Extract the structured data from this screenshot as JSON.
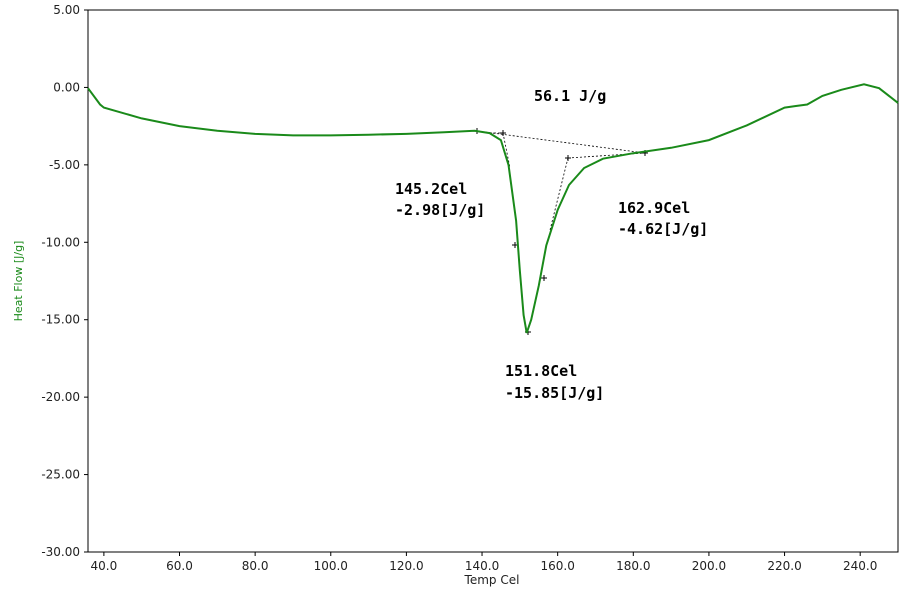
{
  "chart_data": {
    "type": "line",
    "x_label": "Temp Cel",
    "y_label": "Heat Flow [J/g]",
    "x": [
      35.8,
      39,
      40,
      50,
      60,
      70,
      80,
      90,
      100,
      110,
      120,
      130,
      138,
      142,
      145,
      147,
      149,
      150,
      151,
      151.8,
      153,
      155,
      157,
      160,
      163,
      167,
      172,
      180,
      190,
      200,
      210,
      220,
      223,
      226,
      230,
      235,
      241,
      245,
      250
    ],
    "series": [
      {
        "name": "Heat Flow",
        "color": "#1a8a1a",
        "values": [
          -0.05,
          -1.1,
          -1.3,
          -2.0,
          -2.5,
          -2.8,
          -3.0,
          -3.1,
          -3.1,
          -3.05,
          -3.0,
          -2.9,
          -2.8,
          -2.95,
          -3.4,
          -5.0,
          -8.6,
          -11.8,
          -14.7,
          -15.85,
          -15.0,
          -12.8,
          -10.2,
          -7.9,
          -6.3,
          -5.2,
          -4.6,
          -4.25,
          -3.9,
          -3.4,
          -2.45,
          -1.3,
          -1.2,
          -1.1,
          -0.55,
          -0.15,
          0.2,
          -0.05,
          -1.0
        ]
      }
    ],
    "xlim": [
      35.8,
      250
    ],
    "ylim": [
      -30,
      5
    ],
    "xticks": [
      {
        "value": 40,
        "label": "40.0"
      },
      {
        "value": 60,
        "label": "60.0"
      },
      {
        "value": 80,
        "label": "80.0"
      },
      {
        "value": 100,
        "label": "100.0"
      },
      {
        "value": 120,
        "label": "120.0"
      },
      {
        "value": 140,
        "label": "140.0"
      },
      {
        "value": 160,
        "label": "160.0"
      },
      {
        "value": 180,
        "label": "180.0"
      },
      {
        "value": 200,
        "label": "200.0"
      },
      {
        "value": 220,
        "label": "220.0"
      },
      {
        "value": 240,
        "label": "240.0"
      }
    ],
    "yticks": [
      {
        "value": 5,
        "label": "5.00"
      },
      {
        "value": 0,
        "label": "0.00"
      },
      {
        "value": -5,
        "label": "-5.00"
      },
      {
        "value": -10,
        "label": "-10.00"
      },
      {
        "value": -15,
        "label": "-15.00"
      },
      {
        "value": -20,
        "label": "-20.00"
      },
      {
        "value": -25,
        "label": "-25.00"
      },
      {
        "value": -30,
        "label": "-30.00"
      }
    ],
    "annotations": [
      "56.1 J/g",
      "145.2Cel",
      "-2.98[J/g]",
      "162.9Cel",
      "-4.62[J/g]",
      "151.8Cel",
      "-15.85[J/g]"
    ]
  }
}
